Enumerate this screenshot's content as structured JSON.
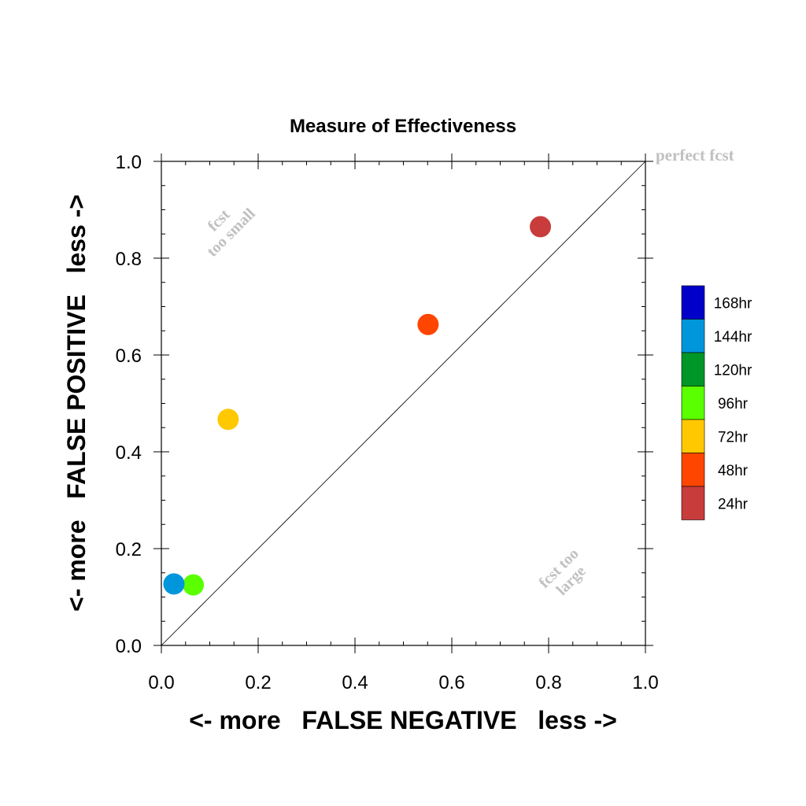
{
  "chart_data": {
    "type": "scatter",
    "title": "Measure of Effectiveness",
    "xlabel": "<- more   FALSE NEGATIVE   less ->",
    "ylabel": "<- more   FALSE POSITIVE   less ->",
    "xlim": [
      0.0,
      1.0
    ],
    "ylim": [
      0.0,
      1.0
    ],
    "x_ticks": [
      "0.0",
      "0.2",
      "0.4",
      "0.6",
      "0.8",
      "1.0"
    ],
    "y_ticks": [
      "0.0",
      "0.2",
      "0.4",
      "0.6",
      "0.8",
      "1.0"
    ],
    "grid": false,
    "diagonal_reference_line": true,
    "annotations": {
      "perfect": "perfect fcst",
      "small_line1": "fcst",
      "small_line2": "too small",
      "large_line1": "fcst too",
      "large_line2": "large"
    },
    "legend_position": "right",
    "legend": [
      {
        "label": "168hr",
        "color": "#0000c8"
      },
      {
        "label": "144hr",
        "color": "#0096dc"
      },
      {
        "label": "120hr",
        "color": "#009628"
      },
      {
        "label": "96hr",
        "color": "#5aff00"
      },
      {
        "label": "72hr",
        "color": "#ffc800"
      },
      {
        "label": "48hr",
        "color": "#ff4600"
      },
      {
        "label": "24hr",
        "color": "#c83c3c"
      }
    ],
    "points": [
      {
        "series": "24hr",
        "x": 0.783,
        "y": 0.865,
        "color": "#c83c3c"
      },
      {
        "series": "48hr",
        "x": 0.551,
        "y": 0.663,
        "color": "#ff4600"
      },
      {
        "series": "72hr",
        "x": 0.138,
        "y": 0.467,
        "color": "#ffc800"
      },
      {
        "series": "96hr",
        "x": 0.066,
        "y": 0.125,
        "color": "#5aff00"
      },
      {
        "series": "144hr",
        "x": 0.026,
        "y": 0.127,
        "color": "#0096dc"
      }
    ]
  }
}
